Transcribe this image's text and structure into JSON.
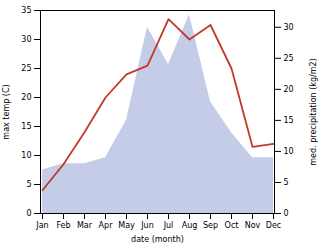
{
  "chart_data": {
    "type": "line",
    "xlabel": "date (month)",
    "ylabel": "max temp (C)",
    "y2label": "med. precipitation (kg/m2)",
    "categories": [
      "Jan",
      "Feb",
      "Mar",
      "Apr",
      "May",
      "Jun",
      "Jul",
      "Aug",
      "Sep",
      "Oct",
      "Nov",
      "Dec"
    ],
    "series": [
      {
        "type": "area",
        "axis": "y2",
        "color": "#c5cce8",
        "values": [
          7.0,
          8.0,
          8.0,
          9.0,
          15.0,
          30.0,
          24.0,
          32.0,
          18.0,
          13.0,
          9.0,
          9.0
        ]
      },
      {
        "type": "line",
        "color": "#c0392b",
        "values": [
          4.0,
          8.5,
          14.0,
          20.0,
          24.0,
          25.5,
          33.5,
          30.0,
          32.5,
          25.0,
          11.5,
          12.0
        ]
      }
    ],
    "ylim": [
      0,
      35
    ],
    "yticks": [
      0,
      5,
      10,
      15,
      20,
      25,
      30,
      35
    ],
    "y2lim": [
      0,
      32.7
    ],
    "y2ticks": [
      0,
      5,
      10,
      15,
      20,
      25,
      30
    ]
  }
}
